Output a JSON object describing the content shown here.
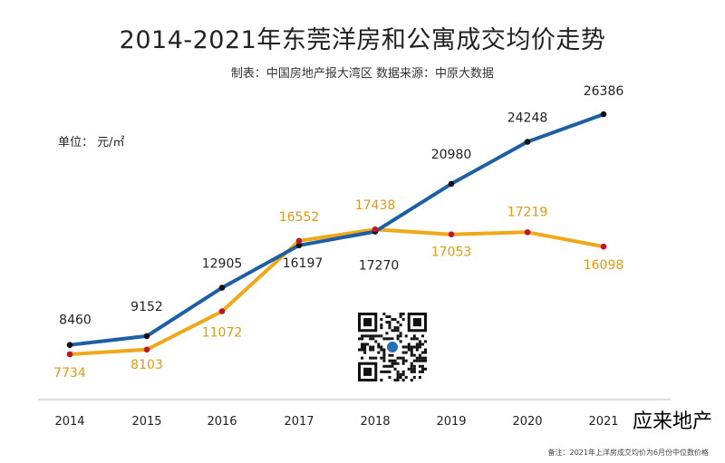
{
  "title": "2014-2021年东莞洋房和公寓成交均价走势",
  "subtitle": "制表：中国房地产报大湾区   数据来源：中原大数据",
  "unit": "单位：  元/㎡",
  "note": "备注：2021年上洋房成交均价为6月份中位数价格",
  "watermark": "应来地产",
  "colors": {
    "series1": "#1d5fa6",
    "series2": "#f0a818",
    "dot1": "#111111",
    "dot2": "#c0142a",
    "label2": "#e09a10"
  },
  "chart_data": {
    "type": "line",
    "categories": [
      "2014",
      "2015",
      "2016",
      "2017",
      "2018",
      "2019",
      "2020",
      "2021"
    ],
    "series": [
      {
        "values": [
          8460,
          9152,
          12905,
          16197,
          17270,
          20980,
          24248,
          26386
        ]
      },
      {
        "values": [
          7734,
          8103,
          11072,
          16552,
          17438,
          17053,
          17219,
          16098
        ]
      }
    ],
    "xlabel": "",
    "ylabel": "",
    "grid": false,
    "legend": "none"
  }
}
